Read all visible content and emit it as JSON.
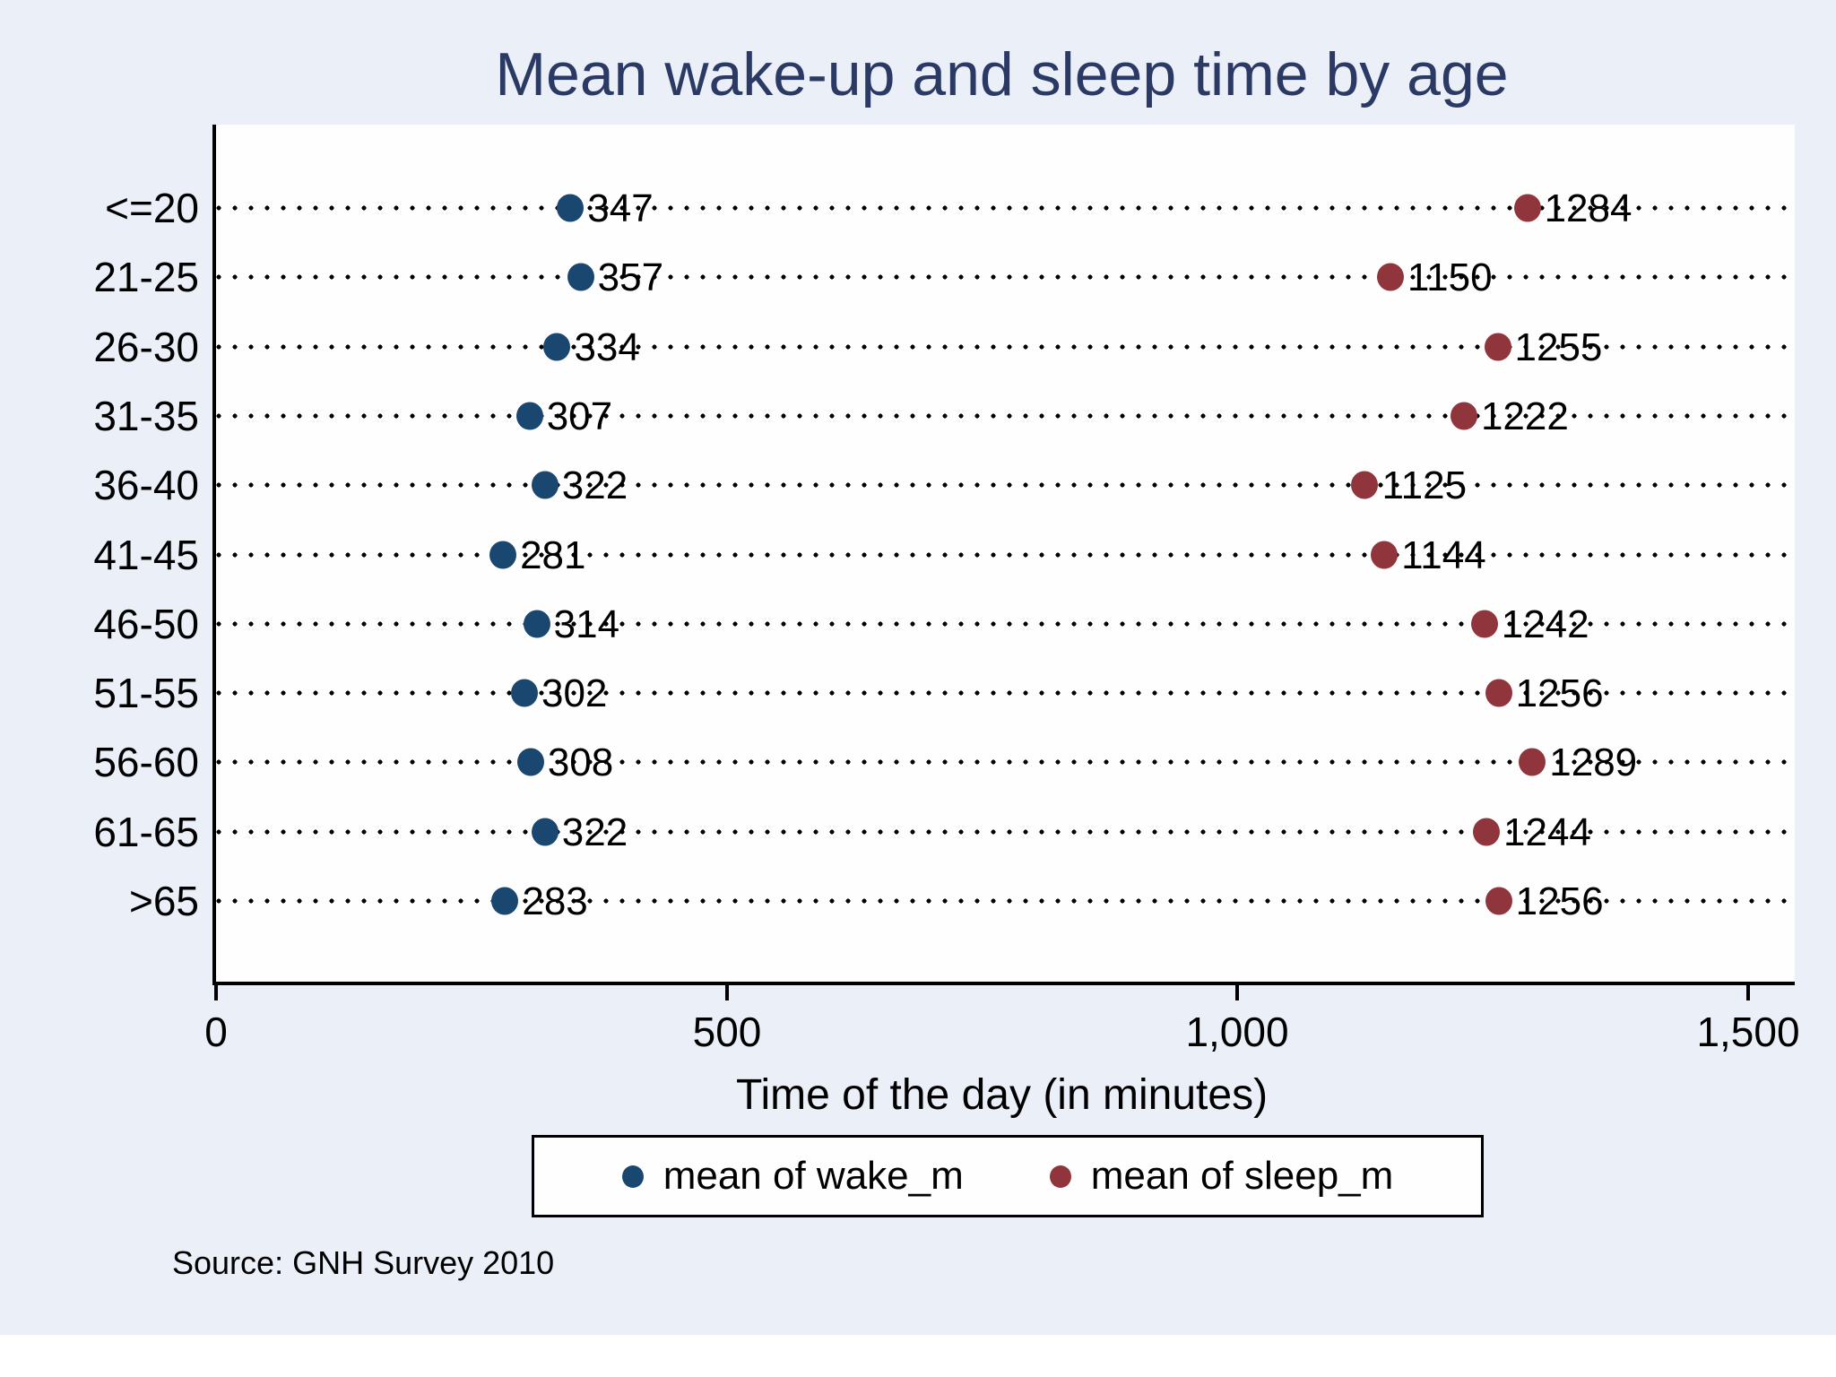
{
  "chart_data": {
    "type": "scatter",
    "title": "Mean wake-up and sleep time by age",
    "categories": [
      "<=20",
      "21-25",
      "26-30",
      "31-35",
      "36-40",
      "41-45",
      "46-50",
      "51-55",
      "56-60",
      "61-65",
      ">65"
    ],
    "series": [
      {
        "name": "mean of wake_m",
        "color": "#1a476f",
        "values": [
          347,
          357,
          334,
          307,
          322,
          281,
          314,
          302,
          308,
          322,
          283
        ]
      },
      {
        "name": "mean of sleep_m",
        "color": "#90353b",
        "values": [
          1284,
          1150,
          1255,
          1222,
          1125,
          1144,
          1242,
          1256,
          1289,
          1244,
          1256
        ]
      }
    ],
    "xlabel": "Time of the day (in minutes)",
    "x_ticks": [
      {
        "value": 0,
        "label": "0"
      },
      {
        "value": 500,
        "label": "500"
      },
      {
        "value": 1000,
        "label": "1,000"
      },
      {
        "value": 1500,
        "label": "1,500"
      }
    ],
    "xlim": [
      0,
      1546
    ],
    "grid": "horizontal-dotted",
    "legend_position": "bottom-center",
    "data_labels": true
  },
  "source_note": "Source: GNH Survey 2010",
  "colors": {
    "background": "#ebeff7",
    "plot_background": "#fefeff",
    "title": "#2b3a64",
    "wake_marker": "#1a476f",
    "sleep_marker": "#90353b",
    "axis": "#000000",
    "grid_dots": "#000000"
  }
}
